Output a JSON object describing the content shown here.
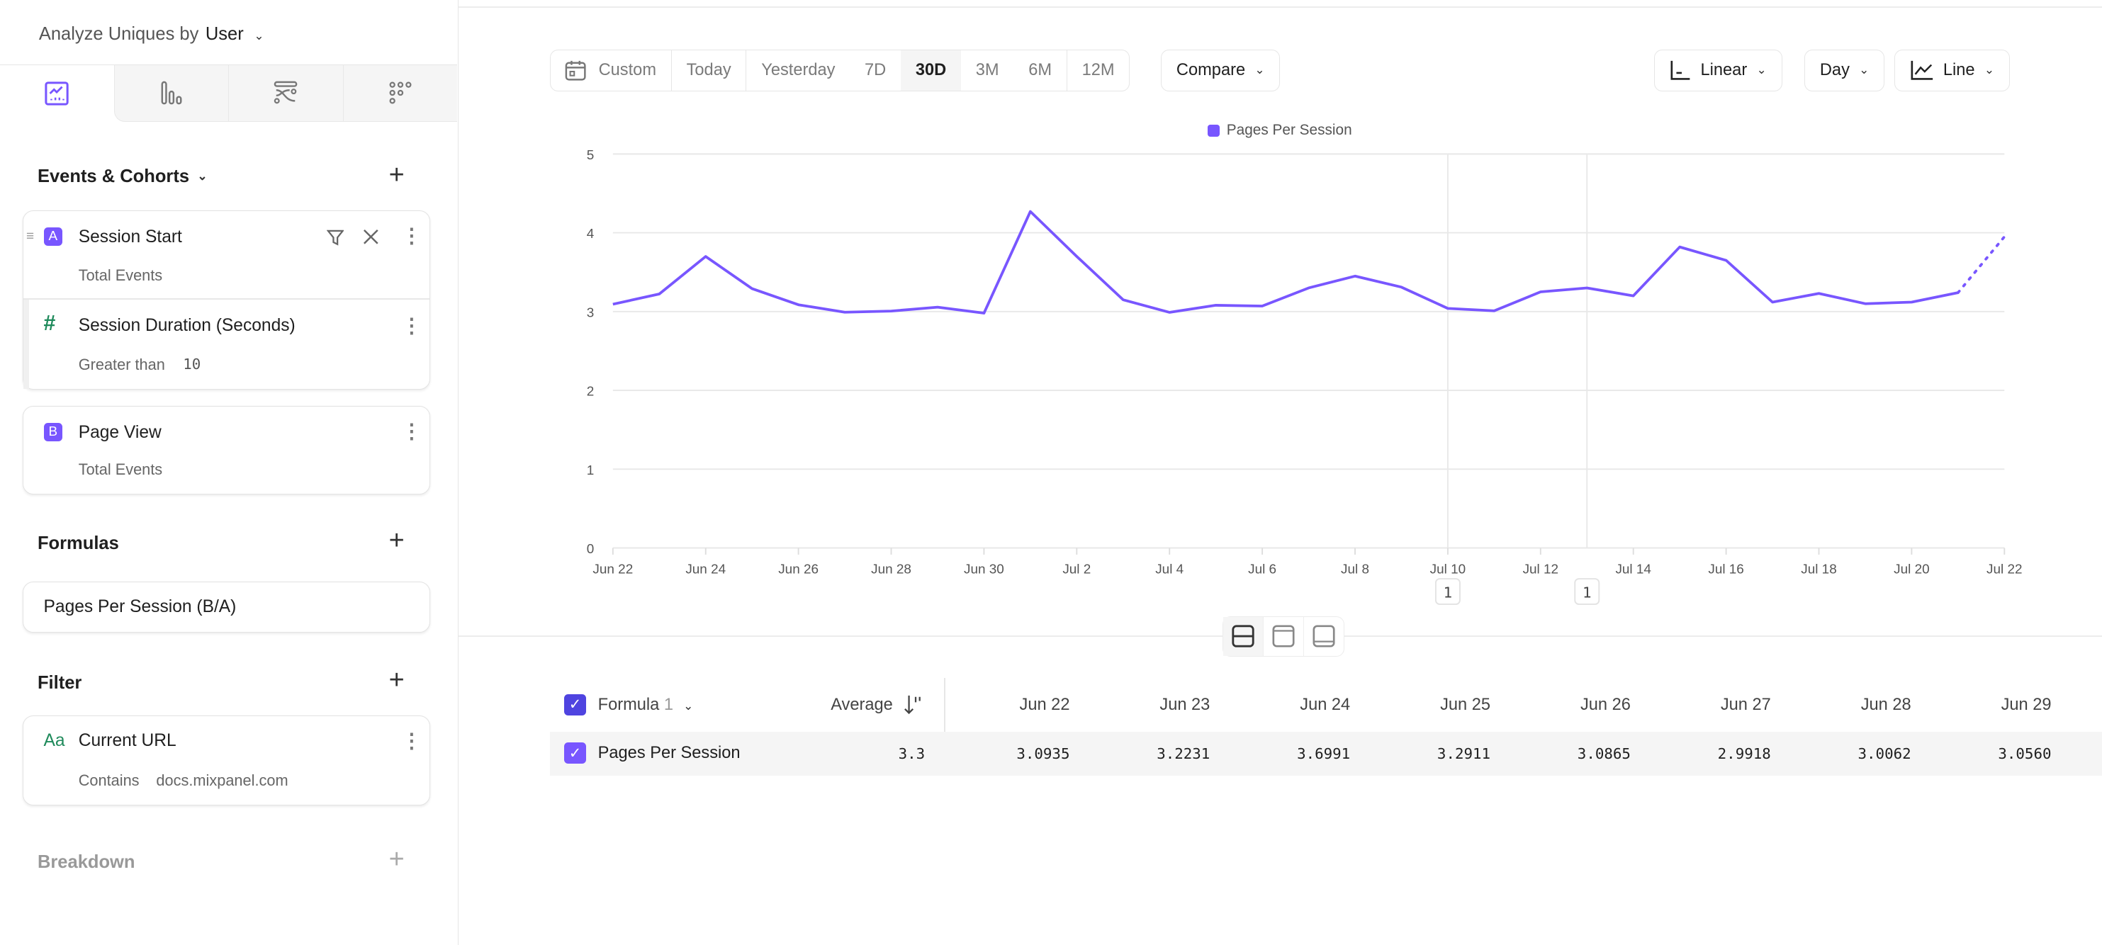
{
  "sidebar": {
    "analyze_label": "Analyze Uniques by",
    "analyze_value": "User",
    "tabs": [
      {
        "icon": "insights-chart-icon",
        "active": true
      },
      {
        "icon": "funnels-bar-icon",
        "active": false
      },
      {
        "icon": "flows-icon",
        "active": false
      },
      {
        "icon": "retention-dots-icon",
        "active": false
      }
    ],
    "events_header": "Events & Cohorts",
    "events": [
      {
        "badge": "A",
        "name": "Session Start",
        "measure": "Total Events",
        "filter": {
          "icon": "hash-icon",
          "name": "Session Duration (Seconds)",
          "operator": "Greater than",
          "value": "10"
        }
      },
      {
        "badge": "B",
        "name": "Page View",
        "measure": "Total Events"
      }
    ],
    "formulas_header": "Formulas",
    "formula": "Pages Per Session (B/A)",
    "filter_header": "Filter",
    "filter": {
      "icon": "text-type-icon",
      "icon_text": "Aa",
      "name": "Current URL",
      "operator": "Contains",
      "value": "docs.mixpanel.com"
    },
    "breakdown_header": "Breakdown"
  },
  "toolbar": {
    "date_ranges": [
      "Custom",
      "Today",
      "Yesterday",
      "7D",
      "30D",
      "3M",
      "6M",
      "12M"
    ],
    "selected_range": "30D",
    "compare": "Compare",
    "scale": "Linear",
    "interval": "Day",
    "chart_type": "Line"
  },
  "colors": {
    "accent": "#7856ff",
    "checkbox": "#4f44e0",
    "green_icon": "#1f8a5b"
  },
  "chart_data": {
    "type": "line",
    "legend": [
      "Pages Per Session"
    ],
    "legend_placement": "top-center",
    "x": [
      "Jun 22",
      "Jun 23",
      "Jun 24",
      "Jun 25",
      "Jun 26",
      "Jun 27",
      "Jun 28",
      "Jun 29",
      "Jun 30",
      "Jul 1",
      "Jul 2",
      "Jul 3",
      "Jul 4",
      "Jul 5",
      "Jul 6",
      "Jul 7",
      "Jul 8",
      "Jul 9",
      "Jul 10",
      "Jul 11",
      "Jul 12",
      "Jul 13",
      "Jul 14",
      "Jul 15",
      "Jul 16",
      "Jul 17",
      "Jul 18",
      "Jul 19",
      "Jul 20",
      "Jul 21",
      "Jul 22"
    ],
    "x_tick_labels": [
      "Jun 22",
      "Jun 24",
      "Jun 26",
      "Jun 28",
      "Jun 30",
      "Jul 2",
      "Jul 4",
      "Jul 6",
      "Jul 8",
      "Jul 10",
      "Jul 12",
      "Jul 14",
      "Jul 16",
      "Jul 18",
      "Jul 20",
      "Jul 22"
    ],
    "series": [
      {
        "name": "Pages Per Session",
        "color": "#7856ff",
        "values": [
          3.0935,
          3.2231,
          3.6991,
          3.2911,
          3.0865,
          2.9918,
          3.0062,
          3.056,
          2.98,
          4.27,
          3.7,
          3.15,
          2.99,
          3.08,
          3.07,
          3.3,
          3.45,
          3.31,
          3.04,
          3.01,
          3.25,
          3.3,
          3.2,
          3.82,
          3.65,
          3.12,
          3.23,
          3.1,
          3.12,
          3.24,
          3.95
        ],
        "last_point_incomplete": true
      }
    ],
    "ylim": [
      0,
      5
    ],
    "y_ticks": [
      "0",
      "1",
      "2",
      "3",
      "4",
      "5"
    ],
    "grid": true,
    "annotations": [
      {
        "x": "Jul 10",
        "label": "1"
      },
      {
        "x": "Jul 13",
        "label": "1"
      }
    ]
  },
  "view_toggles": [
    {
      "icon": "split-view-icon",
      "active": true
    },
    {
      "icon": "chart-only-icon",
      "active": false
    },
    {
      "icon": "table-only-icon",
      "active": false
    }
  ],
  "table": {
    "group_label": "Formula",
    "group_count": "1",
    "average_header": "Average",
    "date_headers": [
      "Jun 22",
      "Jun 23",
      "Jun 24",
      "Jun 25",
      "Jun 26",
      "Jun 27",
      "Jun 28",
      "Jun 29"
    ],
    "rows": [
      {
        "name": "Pages Per Session",
        "average": "3.3",
        "values": [
          "3.0935",
          "3.2231",
          "3.6991",
          "3.2911",
          "3.0865",
          "2.9918",
          "3.0062",
          "3.0560"
        ]
      }
    ]
  }
}
